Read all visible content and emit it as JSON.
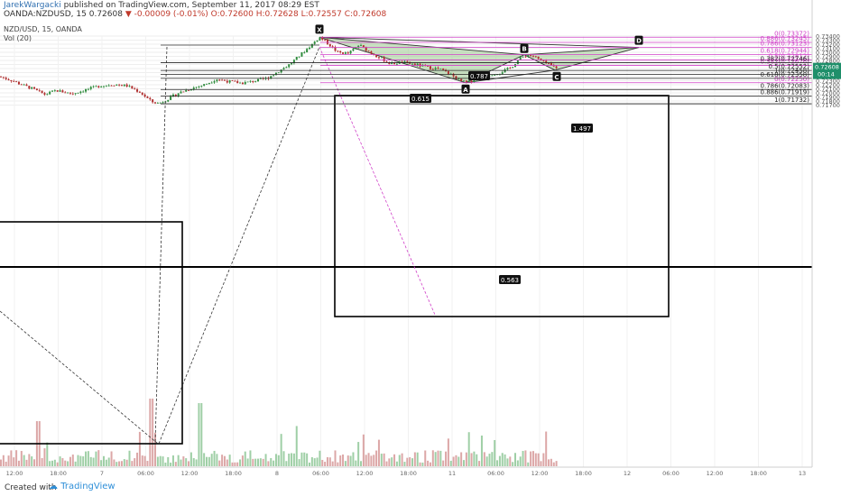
{
  "header": {
    "author": "JarekWargacki",
    "published": "published on TradingView.com, September 11, 2017 08:29 EST",
    "symbol_line": "OANDA:NZDUSD, 15",
    "last": "0.72608",
    "change": "▼ -0.00009 (-0.01%)",
    "ohlc": "O:0.72600 H:0.72628 L:0.72557 C:0.72608"
  },
  "legend": {
    "symbol": "NZD/USD, 15, OANDA",
    "indicator": "Vol (20)"
  },
  "footer": {
    "created_with": "Created with",
    "brand": "TradingView"
  },
  "colors": {
    "bull": "#2e8b3c",
    "bear": "#b03030",
    "fib_major": "#222222",
    "fib_minor": "#d040c8",
    "pattern_fill": "#9dc98f",
    "last_price": "#1f8f6a"
  },
  "chart_data": {
    "type": "candlestick",
    "symbol": "NZD/USD",
    "timeframe": "15",
    "ylim": [
      0.7166,
      0.7344
    ],
    "y_ticks": [
      "0.73400",
      "0.73300",
      "0.73200",
      "0.73100",
      "0.73000",
      "0.72900",
      "0.72800",
      "0.72700",
      "0.72600",
      "0.72500",
      "0.72400",
      "0.72300",
      "0.72200",
      "0.72100",
      "0.72000",
      "0.71900",
      "0.71800",
      "0.71700"
    ],
    "x_ticks": [
      "12:00",
      "18:00",
      "7",
      "06:00",
      "12:00",
      "18:00",
      "8",
      "06:00",
      "12:00",
      "18:00",
      "11",
      "06:00",
      "12:00",
      "18:00",
      "12",
      "06:00",
      "12:00",
      "18:00",
      "13"
    ],
    "last_price": "0.72608",
    "countdown": "00:14",
    "price_anchors": [
      [
        0,
        0.724
      ],
      [
        14,
        0.723
      ],
      [
        22,
        0.7222
      ],
      [
        36,
        0.721
      ],
      [
        50,
        0.7196
      ],
      [
        62,
        0.7206
      ],
      [
        80,
        0.7198
      ],
      [
        94,
        0.7207
      ],
      [
        110,
        0.7217
      ],
      [
        126,
        0.7221
      ],
      [
        140,
        0.7218
      ],
      [
        155,
        0.7202
      ],
      [
        168,
        0.7178
      ],
      [
        176,
        0.7174
      ],
      [
        186,
        0.7185
      ],
      [
        198,
        0.72
      ],
      [
        212,
        0.7211
      ],
      [
        226,
        0.722
      ],
      [
        240,
        0.7234
      ],
      [
        254,
        0.7228
      ],
      [
        268,
        0.7224
      ],
      [
        282,
        0.7229
      ],
      [
        296,
        0.7236
      ],
      [
        310,
        0.7255
      ],
      [
        322,
        0.7272
      ],
      [
        336,
        0.73
      ],
      [
        346,
        0.732
      ],
      [
        354,
        0.7337
      ],
      [
        362,
        0.7325
      ],
      [
        374,
        0.73
      ],
      [
        386,
        0.7297
      ],
      [
        398,
        0.7318
      ],
      [
        410,
        0.73
      ],
      [
        420,
        0.7288
      ],
      [
        432,
        0.7272
      ],
      [
        446,
        0.7275
      ],
      [
        460,
        0.727
      ],
      [
        474,
        0.7263
      ],
      [
        488,
        0.7258
      ],
      [
        500,
        0.7245
      ],
      [
        510,
        0.7229
      ],
      [
        518,
        0.7225
      ],
      [
        528,
        0.7236
      ],
      [
        540,
        0.7244
      ],
      [
        554,
        0.725
      ],
      [
        566,
        0.7262
      ],
      [
        576,
        0.7285
      ],
      [
        584,
        0.7294
      ],
      [
        592,
        0.729
      ],
      [
        600,
        0.7278
      ],
      [
        610,
        0.7268
      ],
      [
        618,
        0.7261
      ]
    ],
    "xabcd": {
      "points": [
        {
          "label": "X",
          "price": 0.7337
        },
        {
          "label": "A",
          "price": 0.7225
        },
        {
          "label": "B",
          "price": 0.7294
        },
        {
          "label": "C",
          "price": 0.7256
        },
        {
          "label": "D",
          "price": 0.7312
        }
      ],
      "ratios": [
        "0.615",
        "0.563",
        "1.497",
        "0.787"
      ]
    },
    "fib_retracements": [
      {
        "color": "#d040c8",
        "levels": [
          {
            "ratio": "0",
            "price": "0.73372"
          },
          {
            "ratio": "0.886",
            "price": "0.73245"
          },
          {
            "ratio": "0.786",
            "price": "0.73123"
          },
          {
            "ratio": "0.618",
            "price": "0.72944"
          },
          {
            "ratio": "0.5",
            "price": "0.72812"
          },
          {
            "ratio": "0.382",
            "price": "0.72676"
          },
          {
            "ratio": "0",
            "price": "0.72250"
          }
        ]
      },
      {
        "color": "#222222",
        "levels": [
          {
            "ratio": "0.382",
            "price": "0.72746"
          },
          {
            "ratio": "0.5",
            "price": "0.72552"
          },
          {
            "ratio": "1",
            "price": "0.72458"
          },
          {
            "ratio": "0.618",
            "price": "0.72358"
          },
          {
            "ratio": "0.786",
            "price": "0.72083"
          },
          {
            "ratio": "0.886",
            "price": "0.71919"
          },
          {
            "ratio": "1",
            "price": "0.71732"
          }
        ]
      }
    ]
  }
}
